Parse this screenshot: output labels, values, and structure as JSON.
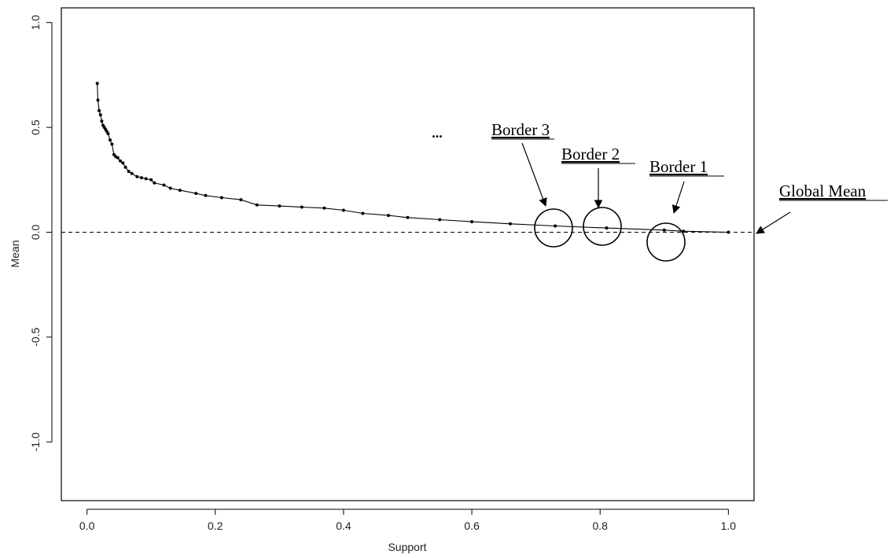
{
  "chart_data": {
    "type": "line",
    "xlabel": "Support",
    "ylabel": "Mean",
    "xlim": [
      -0.04,
      1.04
    ],
    "ylim": [
      -1.28,
      1.07
    ],
    "x_ticks": [
      0.0,
      0.2,
      0.4,
      0.6,
      0.8,
      1.0
    ],
    "x_tick_labels": [
      "0.0",
      "0.2",
      "0.4",
      "0.6",
      "0.8",
      "1.0"
    ],
    "y_ticks": [
      -1.0,
      -0.5,
      0.0,
      0.5,
      1.0
    ],
    "y_tick_labels": [
      "-1.0",
      "-0.5",
      "0.0",
      "0.5",
      "1.0"
    ],
    "grid": false,
    "series": [
      {
        "x": [
          0.016,
          0.017,
          0.019,
          0.021,
          0.023,
          0.025,
          0.027,
          0.029,
          0.031,
          0.033,
          0.036,
          0.039,
          0.042,
          0.045,
          0.048,
          0.052,
          0.056,
          0.06,
          0.065,
          0.07,
          0.078,
          0.085,
          0.092,
          0.1,
          0.105,
          0.12,
          0.13,
          0.145,
          0.17,
          0.185,
          0.21,
          0.24,
          0.265,
          0.3,
          0.335,
          0.37,
          0.4,
          0.43,
          0.47,
          0.5,
          0.55,
          0.6,
          0.66,
          0.73,
          0.81,
          0.9,
          0.93,
          1.0
        ],
        "y": [
          0.71,
          0.63,
          0.58,
          0.56,
          0.53,
          0.51,
          0.5,
          0.49,
          0.48,
          0.47,
          0.44,
          0.42,
          0.37,
          0.36,
          0.355,
          0.34,
          0.33,
          0.31,
          0.29,
          0.28,
          0.265,
          0.26,
          0.255,
          0.25,
          0.235,
          0.225,
          0.21,
          0.2,
          0.185,
          0.175,
          0.165,
          0.155,
          0.13,
          0.125,
          0.12,
          0.115,
          0.105,
          0.09,
          0.08,
          0.07,
          0.06,
          0.05,
          0.04,
          0.03,
          0.02,
          0.01,
          0.005,
          0.0
        ]
      }
    ],
    "reference_line": {
      "y": 0.0,
      "style": "dashed"
    },
    "annotations": {
      "ellipsis": "...",
      "borders": [
        {
          "label": "Border 3",
          "x": 0.73,
          "y": 0.03
        },
        {
          "label": "Border 2",
          "x": 0.81,
          "y": 0.03
        },
        {
          "label": "Border 1",
          "x": 0.905,
          "y": -0.02
        }
      ],
      "global_mean": {
        "label": "Global Mean",
        "x": 1.04,
        "y": 0.0
      }
    }
  }
}
